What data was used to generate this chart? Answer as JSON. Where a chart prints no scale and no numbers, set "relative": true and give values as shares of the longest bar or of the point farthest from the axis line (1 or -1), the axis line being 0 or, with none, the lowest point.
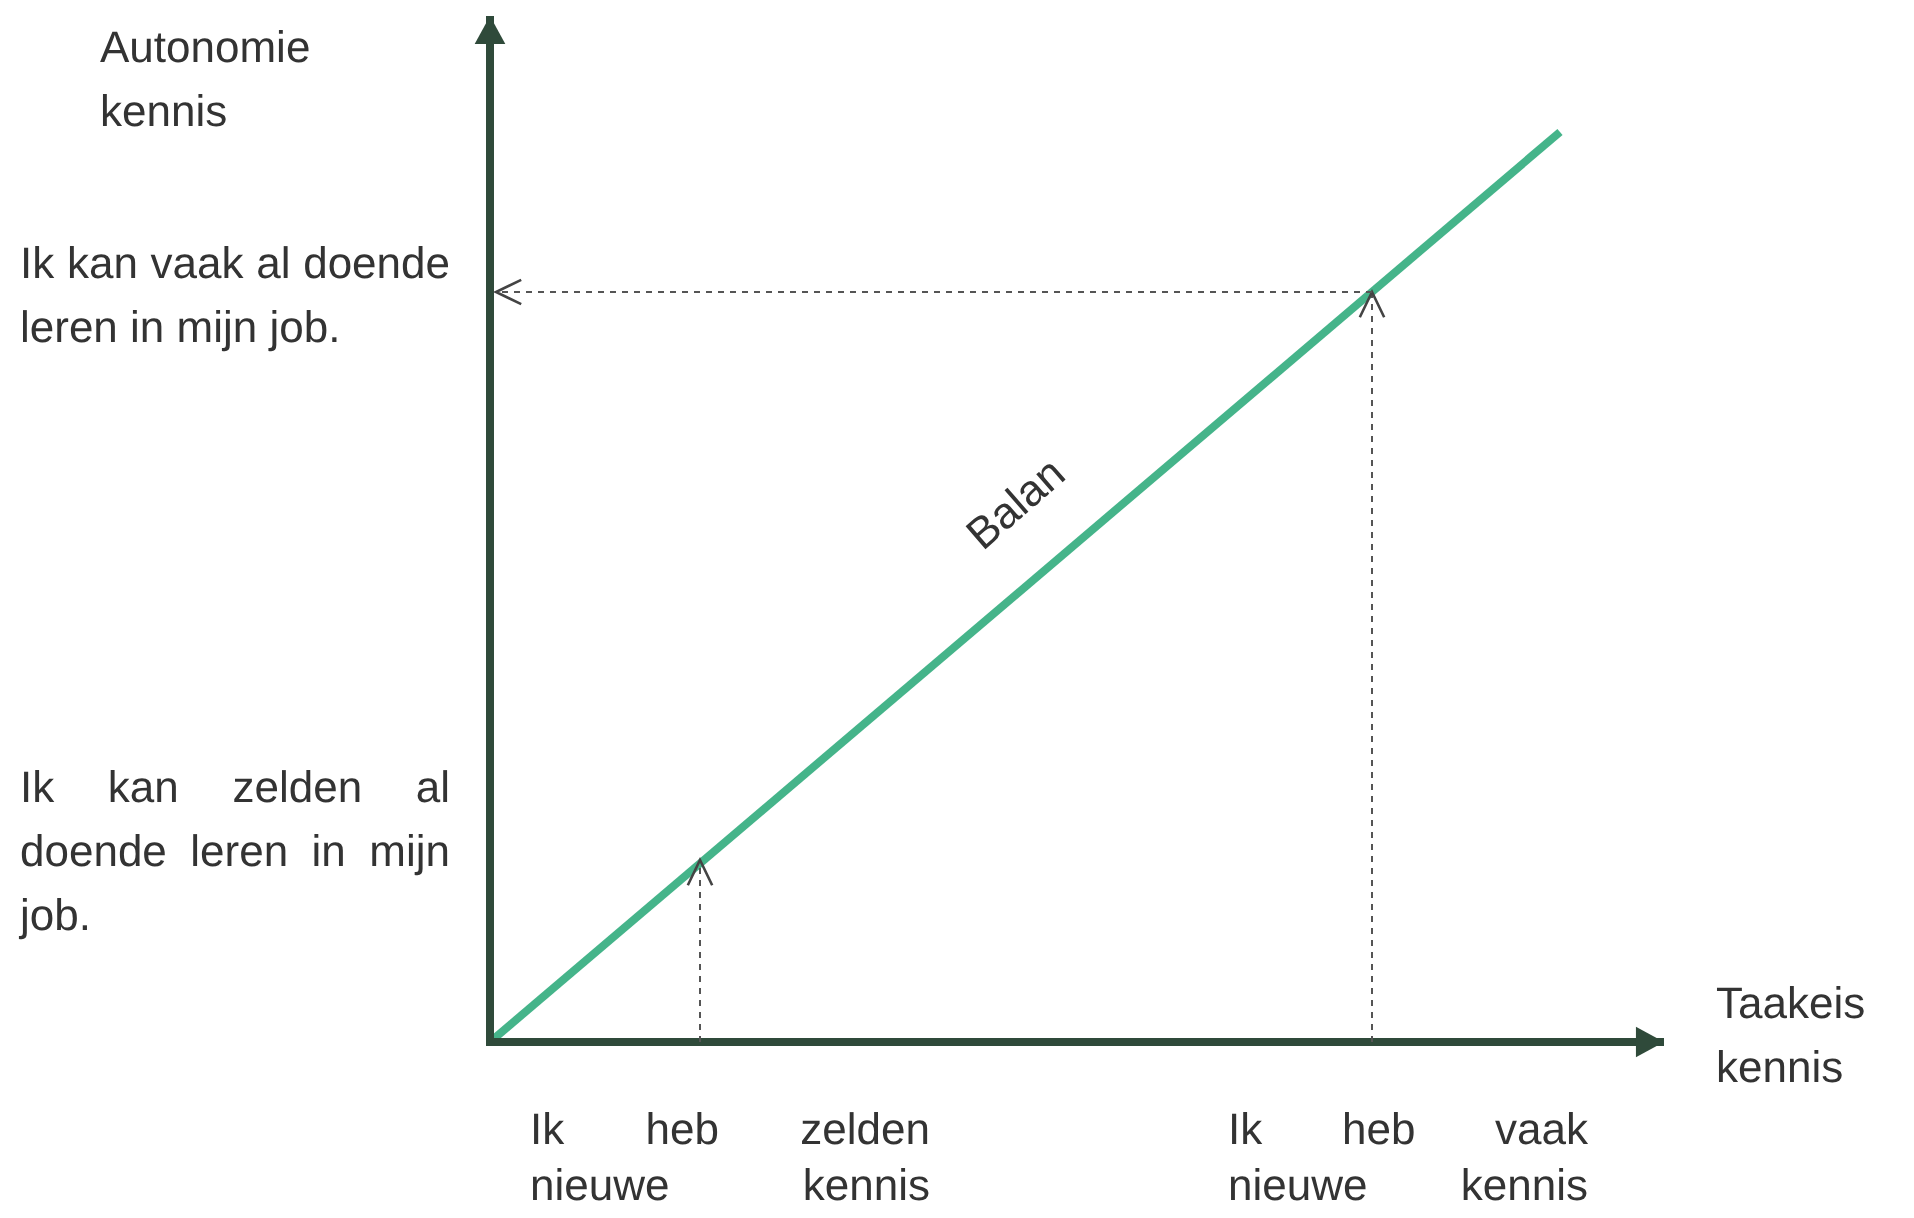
{
  "chart_data": {
    "type": "line",
    "relative": true,
    "xlabel": "Taakeis kennis",
    "ylabel": "Autonomie kennis",
    "categories": [
      null,
      null
    ],
    "series": [
      {
        "color": "#45b48a",
        "values": [
          0,
          1
        ]
      }
    ],
    "annotations": [
      "Ik kan vaak al doende leren in mijn job.",
      "Ik kan zelden al doende leren in mijn job.",
      "Ik heb zelden nieuwe kennis",
      "Ik heb vaak nieuwe kennis",
      "Balan"
    ]
  }
}
